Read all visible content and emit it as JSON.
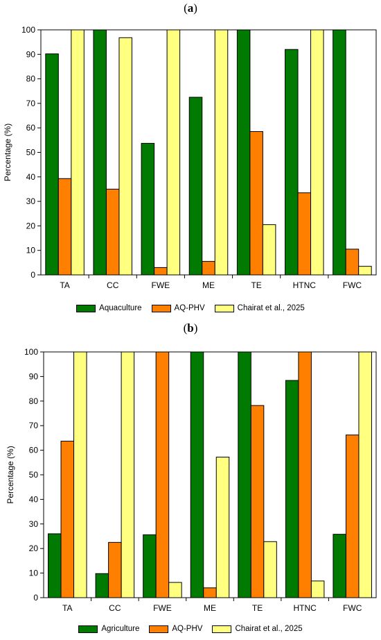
{
  "chart_data": [
    {
      "type": "bar",
      "panel_label": "a",
      "categories": [
        "TA",
        "CC",
        "FWE",
        "ME",
        "TE",
        "HTNC",
        "FWC"
      ],
      "ylabel": "Percentage (%)",
      "xlabel": "",
      "ylim": [
        0,
        100
      ],
      "yticks": [
        0,
        10,
        20,
        30,
        40,
        50,
        60,
        70,
        80,
        90,
        100
      ],
      "grid": false,
      "legend_position": "bottom",
      "series": [
        {
          "name": "Aquaculture",
          "color": "#007a00",
          "values": [
            90.2,
            100,
            53.7,
            72.5,
            100,
            92,
            100
          ]
        },
        {
          "name": "AQ-PHV",
          "color": "#ff8000",
          "values": [
            39.3,
            35,
            3,
            5.5,
            58.5,
            33.5,
            10.5
          ]
        },
        {
          "name": "Chairat et al., 2025",
          "color": "#ffff80",
          "values": [
            100,
            96.8,
            100,
            100,
            20.5,
            100,
            3.5
          ]
        }
      ]
    },
    {
      "type": "bar",
      "panel_label": "b",
      "categories": [
        "TA",
        "CC",
        "FWE",
        "ME",
        "TE",
        "HTNC",
        "FWC"
      ],
      "ylabel": "Percentage (%)",
      "xlabel": "",
      "ylim": [
        0,
        100
      ],
      "yticks": [
        0,
        10,
        20,
        30,
        40,
        50,
        60,
        70,
        80,
        90,
        100
      ],
      "grid": false,
      "legend_position": "bottom",
      "series": [
        {
          "name": "Agriculture",
          "color": "#007a00",
          "values": [
            26,
            9.8,
            25.6,
            100,
            100,
            88.4,
            25.8
          ]
        },
        {
          "name": "AQ-PHV",
          "color": "#ff8000",
          "values": [
            63.7,
            22.5,
            100,
            4,
            78.2,
            100,
            66.2
          ]
        },
        {
          "name": "Chairat et al., 2025",
          "color": "#ffff80",
          "values": [
            100,
            100,
            6.2,
            57.2,
            22.8,
            6.8,
            100
          ]
        }
      ]
    }
  ]
}
